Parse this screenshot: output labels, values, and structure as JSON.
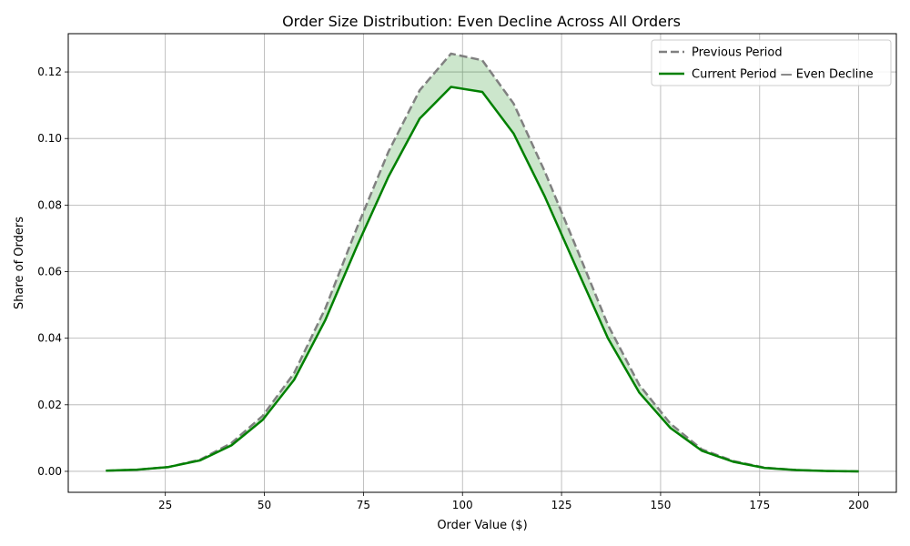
{
  "chart_data": {
    "type": "line",
    "title": "Order Size Distribution: Even Decline Across All Orders",
    "xlabel": "Order Value ($)",
    "ylabel": "Share of Orders",
    "xlim": [
      0.5,
      209.5
    ],
    "ylim": [
      -0.0063,
      0.1315
    ],
    "xticks": [
      25,
      50,
      75,
      100,
      125,
      150,
      175,
      200
    ],
    "yticks": [
      0.0,
      0.02,
      0.04,
      0.06,
      0.08,
      0.1,
      0.12
    ],
    "ytick_labels": [
      "0.00",
      "0.02",
      "0.04",
      "0.06",
      "0.08",
      "0.10",
      "0.12"
    ],
    "grid": true,
    "legend_position": "top-right",
    "x": [
      10,
      17.9,
      25.8,
      33.8,
      41.7,
      49.6,
      57.5,
      65.4,
      73.3,
      81.3,
      89.2,
      97.1,
      105,
      112.9,
      120.8,
      128.8,
      136.7,
      144.6,
      152.5,
      160.4,
      168.3,
      176.3,
      184.2,
      192.1,
      200
    ],
    "series": [
      {
        "name": "Previous Period",
        "color": "#808080",
        "style": "dashed",
        "values": [
          0.0002,
          0.0005,
          0.0013,
          0.0035,
          0.0085,
          0.0167,
          0.0295,
          0.049,
          0.073,
          0.096,
          0.1145,
          0.1255,
          0.1235,
          0.1105,
          0.09,
          0.067,
          0.044,
          0.026,
          0.0143,
          0.0066,
          0.0031,
          0.0011,
          0.0004,
          0.0001,
          0.0
        ]
      },
      {
        "name": "Current Period — Even Decline",
        "color": "#008000",
        "style": "solid",
        "values": [
          0.0002,
          0.0005,
          0.0013,
          0.0033,
          0.0078,
          0.0155,
          0.0275,
          0.0455,
          0.0675,
          0.0885,
          0.106,
          0.1155,
          0.114,
          0.1015,
          0.0825,
          0.061,
          0.04,
          0.0237,
          0.013,
          0.0062,
          0.0029,
          0.001,
          0.0004,
          0.0001,
          0.0
        ]
      }
    ],
    "fill_between": {
      "color": "#008000",
      "opacity": 0.2
    }
  }
}
